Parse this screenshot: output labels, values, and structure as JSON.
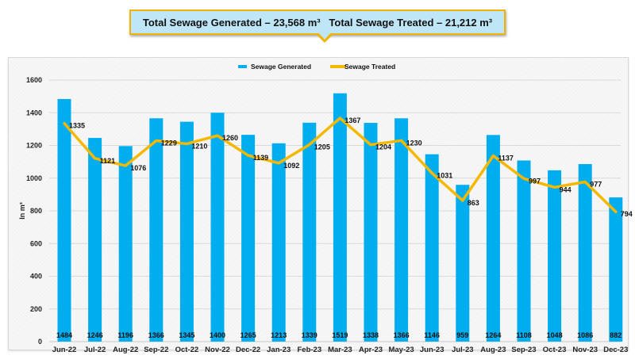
{
  "banner": {
    "text": "Total Sewage Generated – 23,568 m³   Total Sewage Treated – 21,212 m³"
  },
  "colors": {
    "bar": "#00aeef",
    "line": "#f5b800",
    "grid": "#d9d9d9",
    "banner_bg": "#bfe6f6",
    "banner_border": "#f0b400"
  },
  "chart_data": {
    "type": "bar",
    "title": "",
    "xlabel": "",
    "ylabel": "In m³",
    "ylim": [
      0,
      1600
    ],
    "yticks": [
      0,
      200,
      400,
      600,
      800,
      1000,
      1200,
      1400,
      1600
    ],
    "grid": true,
    "legend_position": "top-center",
    "categories": [
      "Jun-22",
      "Jul-22",
      "Aug-22",
      "Sep-22",
      "Oct-22",
      "Nov-22",
      "Dec-22",
      "Jan-23",
      "Feb-23",
      "Mar-23",
      "Apr-23",
      "May-23",
      "Jun-23",
      "Jul-23",
      "Aug-23",
      "Sep-23",
      "Oct-23",
      "Nov-23",
      "Dec-23"
    ],
    "series": [
      {
        "name": "Sewage Generated",
        "type": "bar",
        "values": [
          1484,
          1246,
          1196,
          1366,
          1345,
          1400,
          1265,
          1213,
          1339,
          1519,
          1338,
          1366,
          1146,
          959,
          1264,
          1108,
          1048,
          1086,
          882
        ]
      },
      {
        "name": "Sewage Treated",
        "type": "line",
        "values": [
          1335,
          1121,
          1076,
          1229,
          1210,
          1260,
          1139,
          1092,
          1205,
          1367,
          1204,
          1230,
          1031,
          863,
          1137,
          997,
          944,
          977,
          794
        ]
      }
    ]
  }
}
